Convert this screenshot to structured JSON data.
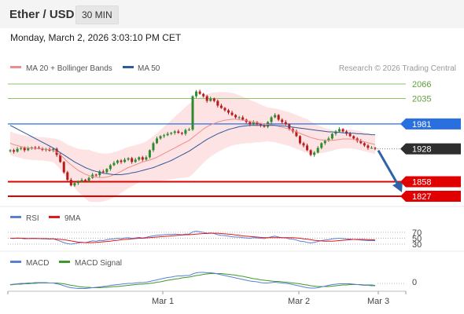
{
  "header": {
    "pair": "Ether / USD",
    "timeframe": "30 MIN"
  },
  "datetime": "Monday, March 2, 2026 3:03:10 PM CET",
  "legend": {
    "bollinger": "MA 20 + Bollinger Bands",
    "ma50": "MA 50",
    "credit": "Research © 2026 Trading Central",
    "rsi": "RSI",
    "rsi_ma": "9MA",
    "macd": "MACD",
    "macd_signal": "MACD Signal"
  },
  "colors": {
    "bollinger": "#f08c8c",
    "band_fill": "#fde3e3",
    "ma50": "#2e5a9e",
    "resistance": "#8dc46a",
    "support": "#e00000",
    "pivot": "#2a6fe0",
    "candle_up": "#2f8a2f",
    "candle_down": "#b71c1c",
    "arrow": "#2e63a8",
    "rsi": "#5a7fd6",
    "rsi_ma": "#e0191e",
    "macd": "#5a7fd6",
    "macd_signal": "#3c9a28"
  },
  "chart_data": [
    {
      "type": "candlestick",
      "title": "Ether / USD",
      "x_ticks": [
        "Mar 1",
        "Mar 2",
        "Mar 3"
      ],
      "ylim": [
        1815,
        2080
      ],
      "levels": [
        {
          "label": "2066",
          "value": 2066,
          "kind": "resistance"
        },
        {
          "label": "2035",
          "value": 2035,
          "kind": "resistance"
        },
        {
          "label": "1981",
          "value": 1981,
          "kind": "pivot"
        },
        {
          "label": "1928",
          "value": 1928,
          "kind": "current"
        },
        {
          "label": "1858",
          "value": 1858,
          "kind": "support"
        },
        {
          "label": "1827",
          "value": 1827,
          "kind": "support"
        }
      ],
      "close": [
        1925,
        1922,
        1928,
        1930,
        1925,
        1929,
        1931,
        1930,
        1929,
        1926,
        1927,
        1924,
        1928,
        1915,
        1900,
        1878,
        1862,
        1850,
        1855,
        1858,
        1862,
        1860,
        1866,
        1873,
        1872,
        1880,
        1878,
        1885,
        1893,
        1898,
        1903,
        1900,
        1905,
        1908,
        1900,
        1905,
        1910,
        1905,
        1910,
        1925,
        1940,
        1950,
        1955,
        1957,
        1960,
        1962,
        1965,
        1962,
        1960,
        1968,
        1969,
        2040,
        2050,
        2045,
        2040,
        2030,
        2035,
        2030,
        2020,
        2015,
        2010,
        2005,
        2000,
        1995,
        1995,
        1990,
        1985,
        1980,
        1985,
        1980,
        1978,
        1975,
        1985,
        1995,
        2000,
        1990,
        1985,
        1980,
        1970,
        1965,
        1955,
        1940,
        1935,
        1925,
        1915,
        1920,
        1930,
        1940,
        1945,
        1950,
        1960,
        1965,
        1970,
        1965,
        1960,
        1955,
        1950,
        1945,
        1940,
        1935,
        1930,
        1930,
        1928
      ],
      "ma20": [
        1940,
        1937,
        1935,
        1933,
        1931,
        1930,
        1929,
        1929,
        1928,
        1928,
        1927,
        1926,
        1925,
        1921,
        1915,
        1908,
        1900,
        1894,
        1888,
        1882,
        1878,
        1874,
        1871,
        1869,
        1868,
        1867,
        1867,
        1868,
        1870,
        1873,
        1876,
        1880,
        1884,
        1888,
        1891,
        1894,
        1897,
        1900,
        1902,
        1904,
        1907,
        1910,
        1914,
        1918,
        1922,
        1926,
        1930,
        1934,
        1938,
        1942,
        1946,
        1952,
        1958,
        1964,
        1970,
        1975,
        1979,
        1982,
        1985,
        1987,
        1989,
        1990,
        1991,
        1991,
        1990,
        1989,
        1988,
        1986,
        1985,
        1984,
        1982,
        1981,
        1980,
        1979,
        1978,
        1976,
        1974,
        1972,
        1970,
        1967,
        1964,
        1961,
        1958,
        1955,
        1952,
        1950,
        1948,
        1947,
        1946,
        1946,
        1946,
        1947,
        1948,
        1949,
        1949,
        1949,
        1948,
        1947,
        1945,
        1943,
        1941,
        1939,
        1937
      ],
      "ma50": [
        1978,
        1974,
        1970,
        1966,
        1962,
        1958,
        1954,
        1950,
        1946,
        1942,
        1938,
        1934,
        1930,
        1925,
        1920,
        1915,
        1910,
        1905,
        1900,
        1896,
        1892,
        1888,
        1885,
        1882,
        1880,
        1878,
        1876,
        1875,
        1874,
        1873,
        1873,
        1873,
        1874,
        1875,
        1877,
        1878,
        1880,
        1882,
        1884,
        1886,
        1888,
        1891,
        1894,
        1897,
        1900,
        1903,
        1907,
        1911,
        1915,
        1919,
        1923,
        1928,
        1933,
        1938,
        1943,
        1948,
        1952,
        1956,
        1960,
        1963,
        1966,
        1969,
        1971,
        1973,
        1975,
        1976,
        1977,
        1978,
        1978,
        1978,
        1978,
        1978,
        1978,
        1978,
        1978,
        1977,
        1977,
        1976,
        1975,
        1974,
        1973,
        1972,
        1971,
        1970,
        1969,
        1968,
        1967,
        1966,
        1965,
        1964,
        1964,
        1963,
        1963,
        1962,
        1962,
        1961,
        1961,
        1960,
        1960,
        1959,
        1959,
        1958,
        1958
      ],
      "band_width": [
        25,
        25,
        25,
        25,
        25,
        25,
        25,
        25,
        25,
        25,
        25,
        25,
        25,
        28,
        31,
        34,
        37,
        40,
        43,
        46,
        49,
        52,
        55,
        54,
        53,
        52,
        51,
        50,
        49,
        48,
        47,
        46,
        45,
        44,
        43,
        42,
        41,
        40,
        42,
        45,
        48,
        51,
        54,
        57,
        60,
        63,
        66,
        69,
        72,
        75,
        78,
        78,
        76,
        74,
        72,
        70,
        68,
        66,
        64,
        62,
        60,
        58,
        56,
        54,
        52,
        50,
        48,
        46,
        44,
        42,
        40,
        38,
        36,
        36,
        36,
        36,
        36,
        36,
        36,
        36,
        36,
        36,
        36,
        36,
        34,
        32,
        30,
        28,
        26,
        24,
        22,
        20,
        20,
        20,
        20,
        20,
        20,
        20,
        20,
        20,
        20,
        20,
        20
      ],
      "forecast": {
        "from": 1928,
        "to": 1827
      }
    },
    {
      "type": "line",
      "title": "RSI",
      "levels": [
        70,
        50,
        30
      ],
      "series": [
        {
          "name": "RSI",
          "values": [
            50,
            49,
            51,
            50,
            48,
            49,
            50,
            50,
            49,
            48,
            48,
            47,
            49,
            44,
            40,
            35,
            32,
            30,
            32,
            34,
            36,
            35,
            38,
            41,
            40,
            43,
            42,
            45,
            47,
            48,
            50,
            49,
            51,
            52,
            50,
            51,
            53,
            51,
            53,
            56,
            58,
            60,
            61,
            62,
            63,
            63,
            64,
            63,
            62,
            64,
            64,
            72,
            74,
            72,
            70,
            67,
            68,
            66,
            62,
            60,
            59,
            57,
            55,
            54,
            54,
            52,
            51,
            50,
            52,
            51,
            50,
            49,
            52,
            55,
            57,
            54,
            52,
            51,
            48,
            47,
            44,
            40,
            39,
            36,
            34,
            36,
            39,
            42,
            44,
            45,
            48,
            49,
            50,
            49,
            48,
            47,
            46,
            45,
            44,
            43,
            42,
            42,
            42
          ]
        },
        {
          "name": "9MA",
          "values": [
            50,
            50,
            50,
            50,
            50,
            49,
            49,
            49,
            49,
            49,
            49,
            48,
            48,
            47,
            46,
            45,
            43,
            41,
            39,
            37,
            36,
            35,
            35,
            35,
            36,
            37,
            38,
            39,
            40,
            42,
            43,
            45,
            46,
            47,
            48,
            49,
            50,
            50,
            51,
            52,
            53,
            54,
            55,
            56,
            57,
            58,
            59,
            60,
            61,
            62,
            62,
            63,
            64,
            65,
            66,
            66,
            67,
            67,
            67,
            66,
            65,
            64,
            63,
            61,
            60,
            58,
            57,
            56,
            55,
            54,
            53,
            52,
            52,
            52,
            52,
            52,
            52,
            52,
            52,
            52,
            51,
            50,
            48,
            47,
            45,
            43,
            42,
            41,
            40,
            40,
            40,
            41,
            42,
            43,
            44,
            45,
            46,
            46,
            46,
            46,
            45,
            45,
            44
          ]
        }
      ]
    },
    {
      "type": "line",
      "title": "MACD",
      "levels": [
        0
      ],
      "series": [
        {
          "name": "MACD",
          "values": [
            -3,
            -2,
            -1,
            0,
            0,
            1,
            1,
            2,
            2,
            2,
            2,
            1,
            1,
            -1,
            -3,
            -6,
            -9,
            -11,
            -12,
            -13,
            -13,
            -13,
            -12,
            -11,
            -10,
            -9,
            -8,
            -7,
            -5,
            -4,
            -3,
            -2,
            -1,
            0,
            0,
            1,
            2,
            2,
            3,
            5,
            7,
            9,
            11,
            13,
            15,
            16,
            18,
            19,
            19,
            20,
            20,
            24,
            27,
            28,
            28,
            27,
            27,
            26,
            24,
            22,
            20,
            18,
            16,
            14,
            12,
            10,
            8,
            6,
            5,
            4,
            2,
            1,
            1,
            2,
            3,
            2,
            1,
            0,
            -1,
            -3,
            -5,
            -7,
            -9,
            -11,
            -12,
            -12,
            -11,
            -9,
            -7,
            -5,
            -3,
            -2,
            -1,
            -1,
            -1,
            -1,
            -2,
            -3,
            -4,
            -5,
            -5,
            -6,
            -6
          ]
        },
        {
          "name": "MACD Signal",
          "values": [
            -4,
            -3,
            -2,
            -2,
            -1,
            -1,
            0,
            0,
            1,
            1,
            1,
            1,
            1,
            1,
            0,
            -1,
            -3,
            -5,
            -6,
            -8,
            -9,
            -10,
            -10,
            -11,
            -11,
            -11,
            -10,
            -10,
            -9,
            -8,
            -8,
            -7,
            -6,
            -5,
            -4,
            -3,
            -2,
            -2,
            -1,
            0,
            1,
            3,
            4,
            6,
            8,
            9,
            11,
            12,
            14,
            15,
            16,
            18,
            20,
            21,
            23,
            24,
            25,
            25,
            25,
            25,
            24,
            23,
            22,
            21,
            19,
            18,
            16,
            14,
            12,
            11,
            9,
            8,
            7,
            6,
            5,
            5,
            4,
            3,
            2,
            1,
            0,
            -1,
            -3,
            -4,
            -6,
            -7,
            -8,
            -8,
            -8,
            -8,
            -7,
            -6,
            -5,
            -4,
            -4,
            -3,
            -3,
            -3,
            -3,
            -4,
            -4,
            -4,
            -5
          ]
        }
      ]
    }
  ]
}
